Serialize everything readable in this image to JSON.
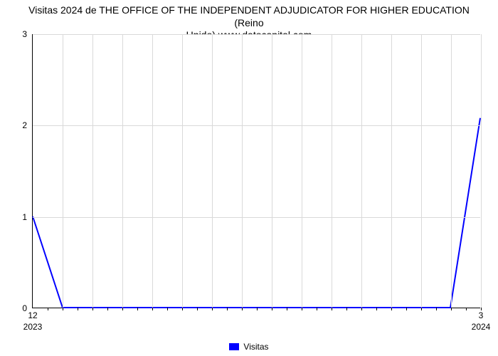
{
  "chart": {
    "type": "line",
    "title_line1": "Visitas 2024 de THE OFFICE OF THE INDEPENDENT ADJUDICATOR FOR HIGHER EDUCATION (Reino",
    "title_line2": "Unido) www.datocapital.com",
    "title_fontsize": 14,
    "background_color": "#ffffff",
    "grid_color": "#d9d9d9",
    "axis_color": "#000000",
    "text_color": "#000000",
    "x": {
      "domain_min": 12,
      "domain_max": 15,
      "major_ticks": [
        {
          "pos": 12,
          "label": "12",
          "year": "2023"
        },
        {
          "pos": 15,
          "label": "3",
          "year": "2024"
        }
      ],
      "vgrid_positions": [
        12.2,
        12.4,
        12.6,
        12.8,
        13.0,
        13.2,
        13.4,
        13.6,
        13.8,
        14.0,
        14.2,
        14.4,
        14.6,
        14.8,
        15.0
      ],
      "minor_tick_positions": [
        12.1,
        12.2,
        12.3,
        12.4,
        12.5,
        12.6,
        12.7,
        12.8,
        12.9,
        13.0,
        13.1,
        13.2,
        13.3,
        13.4,
        13.5,
        13.6,
        13.7,
        13.8,
        13.9,
        14.0,
        14.1,
        14.2,
        14.3,
        14.4,
        14.5,
        14.6,
        14.7,
        14.8,
        14.9,
        15.0
      ]
    },
    "y": {
      "domain_min": 0,
      "domain_max": 3,
      "ticks": [
        0,
        1,
        2,
        3
      ]
    },
    "series": {
      "name": "Visitas",
      "color": "#0000ff",
      "stroke_width": 2,
      "points": [
        {
          "x": 12.0,
          "y": 1.0
        },
        {
          "x": 12.2,
          "y": 0.0
        },
        {
          "x": 14.8,
          "y": 0.0
        },
        {
          "x": 15.0,
          "y": 2.08
        }
      ]
    },
    "legend": {
      "label": "Visitas",
      "swatch_color": "#0000ff"
    }
  }
}
